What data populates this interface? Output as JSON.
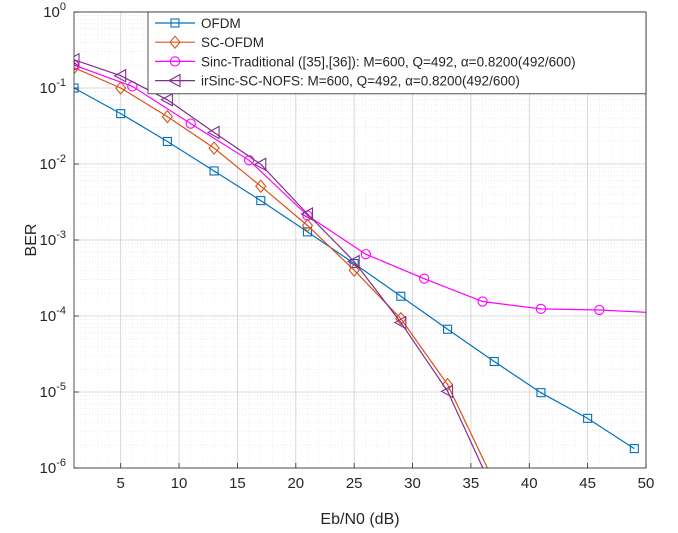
{
  "chart_data": {
    "type": "line",
    "xlabel": "Eb/N0 (dB)",
    "ylabel": "BER",
    "xlim": [
      1,
      50
    ],
    "ylim": [
      1e-06,
      1
    ],
    "y_scale": "log",
    "grid": true,
    "minor_grid": true,
    "legend_position": "top-right",
    "x_ticks": [
      5,
      10,
      15,
      20,
      25,
      30,
      35,
      40,
      45,
      50
    ],
    "y_ticks": [
      {
        "value": 1,
        "base": "10",
        "exp": "0"
      },
      {
        "value": 0.1,
        "base": "10",
        "exp": "-1"
      },
      {
        "value": 0.01,
        "base": "10",
        "exp": "-2"
      },
      {
        "value": 0.001,
        "base": "10",
        "exp": "-3"
      },
      {
        "value": 0.0001,
        "base": "10",
        "exp": "-4"
      },
      {
        "value": 1e-05,
        "base": "10",
        "exp": "-5"
      },
      {
        "value": 1e-06,
        "base": "10",
        "exp": "-6"
      }
    ],
    "series": [
      {
        "name": "OFDM",
        "color": "#0072BD",
        "marker": "square",
        "line": [
          [
            1,
            0.1
          ],
          [
            5,
            0.046
          ],
          [
            9,
            0.0198
          ],
          [
            13,
            0.0081
          ],
          [
            17,
            0.0033
          ],
          [
            21,
            0.00128
          ],
          [
            25,
            0.00049
          ],
          [
            29,
            0.000182
          ],
          [
            33,
            6.7e-05
          ],
          [
            37,
            2.52e-05
          ],
          [
            41,
            9.8e-06
          ],
          [
            45,
            4.5e-06
          ],
          [
            49,
            1.8e-06
          ]
        ],
        "markers": [
          [
            1,
            0.1
          ],
          [
            5,
            0.046
          ],
          [
            9,
            0.0198
          ],
          [
            13,
            0.0081
          ],
          [
            17,
            0.0033
          ],
          [
            21,
            0.00128
          ],
          [
            25,
            0.00049
          ],
          [
            29,
            0.000182
          ],
          [
            33,
            6.7e-05
          ],
          [
            37,
            2.52e-05
          ],
          [
            41,
            9.8e-06
          ],
          [
            45,
            4.5e-06
          ],
          [
            49,
            1.8e-06
          ]
        ]
      },
      {
        "name": "SC-OFDM",
        "color": "#D95319",
        "marker": "diamond",
        "line": [
          [
            1,
            0.185
          ],
          [
            5,
            0.1
          ],
          [
            9,
            0.042
          ],
          [
            13,
            0.0162
          ],
          [
            17,
            0.0051
          ],
          [
            21,
            0.00155
          ],
          [
            25,
            0.0004
          ],
          [
            29,
            9.2e-05
          ],
          [
            33,
            1.25e-05
          ],
          [
            37,
            6.5e-07
          ]
        ],
        "markers": [
          [
            1,
            0.185
          ],
          [
            5,
            0.1
          ],
          [
            9,
            0.042
          ],
          [
            13,
            0.0162
          ],
          [
            17,
            0.0051
          ],
          [
            21,
            0.00155
          ],
          [
            25,
            0.0004
          ],
          [
            29,
            9.2e-05
          ],
          [
            33,
            1.25e-05
          ]
        ]
      },
      {
        "name": "Sinc-Traditional ([35],[36]): M=600, Q=492, α=0.8200(492/600)",
        "color": "#FF00FF",
        "marker": "circle",
        "line": [
          [
            1,
            0.2
          ],
          [
            6,
            0.105
          ],
          [
            11,
            0.034
          ],
          [
            16,
            0.0112
          ],
          [
            21,
            0.0021
          ],
          [
            26,
            0.00065
          ],
          [
            31,
            0.00031
          ],
          [
            36,
            0.000155
          ],
          [
            41,
            0.000124
          ],
          [
            46,
            0.00012
          ],
          [
            50,
            0.000112
          ]
        ],
        "markers": [
          [
            1,
            0.2
          ],
          [
            6,
            0.105
          ],
          [
            11,
            0.034
          ],
          [
            16,
            0.0112
          ],
          [
            21,
            0.0021
          ],
          [
            26,
            0.00065
          ],
          [
            31,
            0.00031
          ],
          [
            36,
            0.000155
          ],
          [
            41,
            0.000124
          ],
          [
            46,
            0.00012
          ]
        ]
      },
      {
        "name": "irSinc-SC-NOFS: M=600, Q=492, α=0.8200(492/600)",
        "color": "#7E2F8E",
        "marker": "triangle-left",
        "line": [
          [
            1,
            0.235
          ],
          [
            5,
            0.145
          ],
          [
            9,
            0.07
          ],
          [
            13,
            0.026
          ],
          [
            17,
            0.0099
          ],
          [
            21,
            0.0022
          ],
          [
            25,
            0.00052
          ],
          [
            29,
            8.2e-05
          ],
          [
            33,
            1.02e-05
          ],
          [
            36.8,
            5.5e-07
          ]
        ],
        "markers": [
          [
            1,
            0.235
          ],
          [
            5,
            0.145
          ],
          [
            9,
            0.07
          ],
          [
            13,
            0.026
          ],
          [
            17,
            0.0099
          ],
          [
            21,
            0.0022
          ],
          [
            25,
            0.00052
          ],
          [
            29,
            8.2e-05
          ],
          [
            33,
            1.02e-05
          ]
        ]
      }
    ]
  }
}
